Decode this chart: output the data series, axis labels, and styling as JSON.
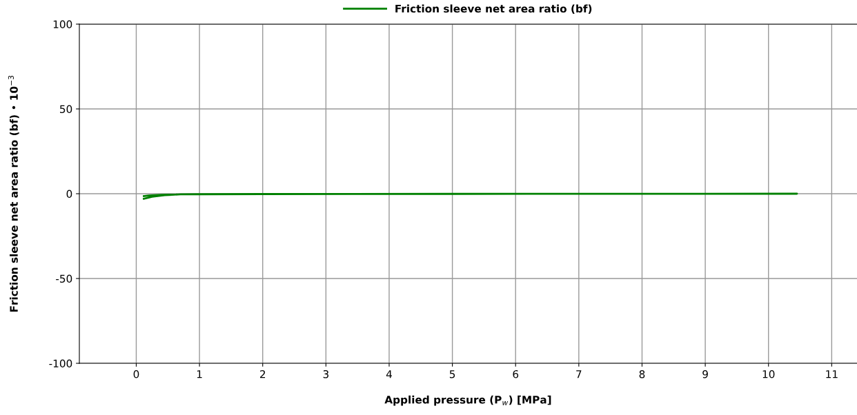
{
  "chart_data": {
    "type": "line",
    "xlabel": "Applied pressure (P$_{w}$) [MPa]",
    "ylabel": "Friction sleeve net area ratio (bf) • 10$^{−3}$",
    "x": [
      0.12,
      0.25,
      0.45,
      0.7,
      1,
      2,
      5,
      10.45,
      5,
      2,
      1,
      0.7,
      0.4,
      0.2,
      0.12
    ],
    "series": [
      {
        "name": "Friction sleeve net area ratio (bf)",
        "color": "#008000",
        "values": [
          -3,
          -1.8,
          -0.9,
          -0.4,
          -0.3,
          -0.2,
          -0.1,
          0,
          -0.1,
          -0.2,
          -0.3,
          -0.4,
          -0.7,
          -1.1,
          -1.4
        ]
      }
    ],
    "xlim": [
      -0.9,
      11.4
    ],
    "ylim": [
      -100,
      100
    ],
    "xticks": [
      0,
      1,
      2,
      3,
      4,
      5,
      6,
      7,
      8,
      9,
      10,
      11
    ],
    "yticks": [
      -100,
      -50,
      0,
      50,
      100
    ],
    "grid": true,
    "legend": "top",
    "marker": "none",
    "line_style": "solid"
  }
}
